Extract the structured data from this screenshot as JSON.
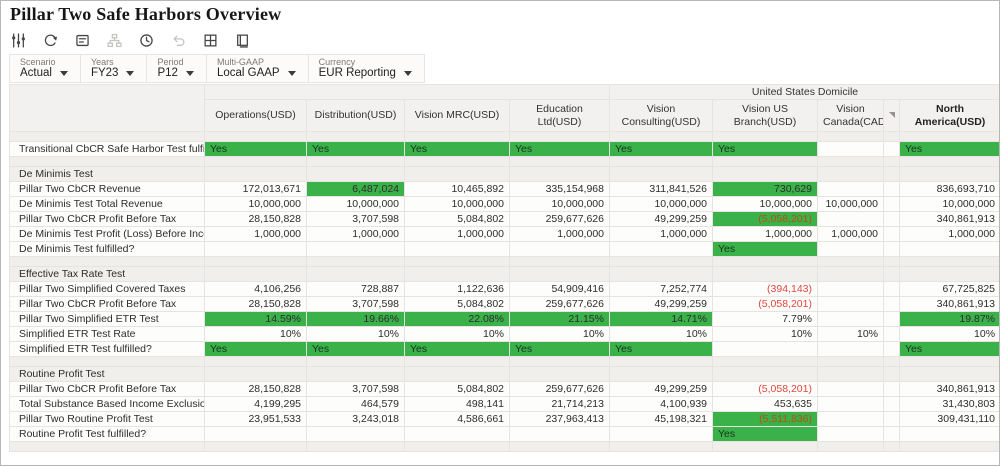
{
  "header": {
    "title": "Pillar Two Safe Harbors Overview"
  },
  "toolbar": {
    "icons": [
      {
        "name": "adjust-pov-icon",
        "enabled": true
      },
      {
        "name": "refresh-icon",
        "enabled": true
      },
      {
        "name": "comment-icon",
        "enabled": true
      },
      {
        "name": "hierarchy-icon",
        "enabled": false
      },
      {
        "name": "history-icon",
        "enabled": true
      },
      {
        "name": "undo-icon",
        "enabled": false
      },
      {
        "name": "grid-options-icon",
        "enabled": true
      },
      {
        "name": "open-window-icon",
        "enabled": true
      }
    ]
  },
  "pov": {
    "items": [
      {
        "label": "Scenario",
        "value": "Actual"
      },
      {
        "label": "Years",
        "value": "FY23"
      },
      {
        "label": "Period",
        "value": "P12"
      },
      {
        "label": "Multi-GAAP",
        "value": "Local GAAP"
      },
      {
        "label": "Currency",
        "value": "EUR Reporting"
      }
    ]
  },
  "colors": {
    "green": "#3bb14a",
    "negative": "#e2453c",
    "negative_on_green": "#bc4e0e"
  },
  "grid": {
    "domicile_header": "United States Domicile",
    "columns": [
      "Operations(USD)",
      "Distribution(USD)",
      "Vision MRC(USD)",
      "Education Ltd(USD)",
      "Vision Consulting(USD)",
      "Vision US Branch(USD)",
      "Vision Canada(CAD)",
      "",
      "North America(USD)"
    ],
    "rows": [
      {
        "type": "blank"
      },
      {
        "type": "data",
        "label": "Transitional CbCR Safe Harbor Test fulfilled?",
        "cells": [
          {
            "v": "Yes",
            "s": "y"
          },
          {
            "v": "Yes",
            "s": "y"
          },
          {
            "v": "Yes",
            "s": "y"
          },
          {
            "v": "Yes",
            "s": "y"
          },
          {
            "v": "Yes",
            "s": "y"
          },
          {
            "v": "Yes",
            "s": "y"
          },
          {
            "v": "",
            "s": ""
          },
          {
            "v": "",
            "s": ""
          },
          {
            "v": "Yes",
            "s": "y"
          }
        ]
      },
      {
        "type": "blank"
      },
      {
        "type": "section",
        "label": "De Minimis Test"
      },
      {
        "type": "data",
        "label": "Pillar Two CbCR Revenue",
        "cells": [
          {
            "v": "172,013,671",
            "s": ""
          },
          {
            "v": "6,487,024",
            "s": "g"
          },
          {
            "v": "10,465,892",
            "s": ""
          },
          {
            "v": "335,154,968",
            "s": ""
          },
          {
            "v": "311,841,526",
            "s": ""
          },
          {
            "v": "730,629",
            "s": "g"
          },
          {
            "v": "",
            "s": ""
          },
          {
            "v": "",
            "s": ""
          },
          {
            "v": "836,693,710",
            "s": ""
          }
        ]
      },
      {
        "type": "data",
        "label": "De Minimis Test Total Revenue",
        "cells": [
          {
            "v": "10,000,000",
            "s": ""
          },
          {
            "v": "10,000,000",
            "s": ""
          },
          {
            "v": "10,000,000",
            "s": ""
          },
          {
            "v": "10,000,000",
            "s": ""
          },
          {
            "v": "10,000,000",
            "s": ""
          },
          {
            "v": "10,000,000",
            "s": ""
          },
          {
            "v": "10,000,000",
            "s": ""
          },
          {
            "v": "",
            "s": ""
          },
          {
            "v": "10,000,000",
            "s": ""
          }
        ]
      },
      {
        "type": "data",
        "label": "Pillar Two CbCR Profit Before Tax",
        "cells": [
          {
            "v": "28,150,828",
            "s": ""
          },
          {
            "v": "3,707,598",
            "s": ""
          },
          {
            "v": "5,084,802",
            "s": ""
          },
          {
            "v": "259,677,626",
            "s": ""
          },
          {
            "v": "49,299,259",
            "s": ""
          },
          {
            "v": "(5,058,201)",
            "s": "ng"
          },
          {
            "v": "",
            "s": ""
          },
          {
            "v": "",
            "s": ""
          },
          {
            "v": "340,861,913",
            "s": ""
          }
        ]
      },
      {
        "type": "data",
        "label": "De Minimis Test Profit (Loss) Before Income Tax",
        "cells": [
          {
            "v": "1,000,000",
            "s": ""
          },
          {
            "v": "1,000,000",
            "s": ""
          },
          {
            "v": "1,000,000",
            "s": ""
          },
          {
            "v": "1,000,000",
            "s": ""
          },
          {
            "v": "1,000,000",
            "s": ""
          },
          {
            "v": "1,000,000",
            "s": ""
          },
          {
            "v": "1,000,000",
            "s": ""
          },
          {
            "v": "",
            "s": ""
          },
          {
            "v": "1,000,000",
            "s": ""
          }
        ]
      },
      {
        "type": "data",
        "label": "De Minimis Test fulfilled?",
        "cells": [
          {
            "v": "",
            "s": ""
          },
          {
            "v": "",
            "s": ""
          },
          {
            "v": "",
            "s": ""
          },
          {
            "v": "",
            "s": ""
          },
          {
            "v": "",
            "s": ""
          },
          {
            "v": "Yes",
            "s": "y"
          },
          {
            "v": "",
            "s": ""
          },
          {
            "v": "",
            "s": ""
          },
          {
            "v": "",
            "s": ""
          }
        ]
      },
      {
        "type": "blank"
      },
      {
        "type": "section",
        "label": "Effective Tax Rate Test"
      },
      {
        "type": "data",
        "label": "Pillar Two Simplified Covered Taxes",
        "cells": [
          {
            "v": "4,106,256",
            "s": ""
          },
          {
            "v": "728,887",
            "s": ""
          },
          {
            "v": "1,122,636",
            "s": ""
          },
          {
            "v": "54,909,416",
            "s": ""
          },
          {
            "v": "7,252,774",
            "s": ""
          },
          {
            "v": "(394,143)",
            "s": "n"
          },
          {
            "v": "",
            "s": ""
          },
          {
            "v": "",
            "s": ""
          },
          {
            "v": "67,725,825",
            "s": ""
          }
        ]
      },
      {
        "type": "data",
        "label": "Pillar Two CbCR Profit Before Tax",
        "cells": [
          {
            "v": "28,150,828",
            "s": ""
          },
          {
            "v": "3,707,598",
            "s": ""
          },
          {
            "v": "5,084,802",
            "s": ""
          },
          {
            "v": "259,677,626",
            "s": ""
          },
          {
            "v": "49,299,259",
            "s": ""
          },
          {
            "v": "(5,058,201)",
            "s": "n"
          },
          {
            "v": "",
            "s": ""
          },
          {
            "v": "",
            "s": ""
          },
          {
            "v": "340,861,913",
            "s": ""
          }
        ]
      },
      {
        "type": "data",
        "label": "Pillar Two Simplified ETR Test",
        "cells": [
          {
            "v": "14.59%",
            "s": "g"
          },
          {
            "v": "19.66%",
            "s": "g"
          },
          {
            "v": "22.08%",
            "s": "g"
          },
          {
            "v": "21.15%",
            "s": "g"
          },
          {
            "v": "14.71%",
            "s": "g"
          },
          {
            "v": "7.79%",
            "s": ""
          },
          {
            "v": "",
            "s": ""
          },
          {
            "v": "",
            "s": ""
          },
          {
            "v": "19.87%",
            "s": "g"
          }
        ]
      },
      {
        "type": "data",
        "label": "Simplified ETR Test Rate",
        "cells": [
          {
            "v": "10%",
            "s": ""
          },
          {
            "v": "10%",
            "s": ""
          },
          {
            "v": "10%",
            "s": ""
          },
          {
            "v": "10%",
            "s": ""
          },
          {
            "v": "10%",
            "s": ""
          },
          {
            "v": "10%",
            "s": ""
          },
          {
            "v": "10%",
            "s": ""
          },
          {
            "v": "",
            "s": ""
          },
          {
            "v": "10%",
            "s": ""
          }
        ]
      },
      {
        "type": "data",
        "label": "Simplified ETR Test fulfilled?",
        "cells": [
          {
            "v": "Yes",
            "s": "y"
          },
          {
            "v": "Yes",
            "s": "y"
          },
          {
            "v": "Yes",
            "s": "y"
          },
          {
            "v": "Yes",
            "s": "y"
          },
          {
            "v": "Yes",
            "s": "y"
          },
          {
            "v": "",
            "s": ""
          },
          {
            "v": "",
            "s": ""
          },
          {
            "v": "",
            "s": ""
          },
          {
            "v": "Yes",
            "s": "y"
          }
        ]
      },
      {
        "type": "blank"
      },
      {
        "type": "section",
        "label": "Routine Profit Test"
      },
      {
        "type": "data",
        "label": "Pillar Two CbCR Profit Before Tax",
        "cells": [
          {
            "v": "28,150,828",
            "s": ""
          },
          {
            "v": "3,707,598",
            "s": ""
          },
          {
            "v": "5,084,802",
            "s": ""
          },
          {
            "v": "259,677,626",
            "s": ""
          },
          {
            "v": "49,299,259",
            "s": ""
          },
          {
            "v": "(5,058,201)",
            "s": "n"
          },
          {
            "v": "",
            "s": ""
          },
          {
            "v": "",
            "s": ""
          },
          {
            "v": "340,861,913",
            "s": ""
          }
        ]
      },
      {
        "type": "data",
        "label": "Total Substance Based Income Exclusion",
        "cells": [
          {
            "v": "4,199,295",
            "s": ""
          },
          {
            "v": "464,579",
            "s": ""
          },
          {
            "v": "498,141",
            "s": ""
          },
          {
            "v": "21,714,213",
            "s": ""
          },
          {
            "v": "4,100,939",
            "s": ""
          },
          {
            "v": "453,635",
            "s": ""
          },
          {
            "v": "",
            "s": ""
          },
          {
            "v": "",
            "s": ""
          },
          {
            "v": "31,430,803",
            "s": ""
          }
        ]
      },
      {
        "type": "data",
        "label": "Pillar Two Routine Profit Test",
        "cells": [
          {
            "v": "23,951,533",
            "s": ""
          },
          {
            "v": "3,243,018",
            "s": ""
          },
          {
            "v": "4,586,661",
            "s": ""
          },
          {
            "v": "237,963,413",
            "s": ""
          },
          {
            "v": "45,198,321",
            "s": ""
          },
          {
            "v": "(5,511,836)",
            "s": "ng"
          },
          {
            "v": "",
            "s": ""
          },
          {
            "v": "",
            "s": ""
          },
          {
            "v": "309,431,110",
            "s": ""
          }
        ]
      },
      {
        "type": "data",
        "label": "Routine Profit Test fulfilled?",
        "cells": [
          {
            "v": "",
            "s": ""
          },
          {
            "v": "",
            "s": ""
          },
          {
            "v": "",
            "s": ""
          },
          {
            "v": "",
            "s": ""
          },
          {
            "v": "",
            "s": ""
          },
          {
            "v": "Yes",
            "s": "y"
          },
          {
            "v": "",
            "s": ""
          },
          {
            "v": "",
            "s": ""
          },
          {
            "v": "",
            "s": ""
          }
        ]
      },
      {
        "type": "blank"
      }
    ]
  }
}
